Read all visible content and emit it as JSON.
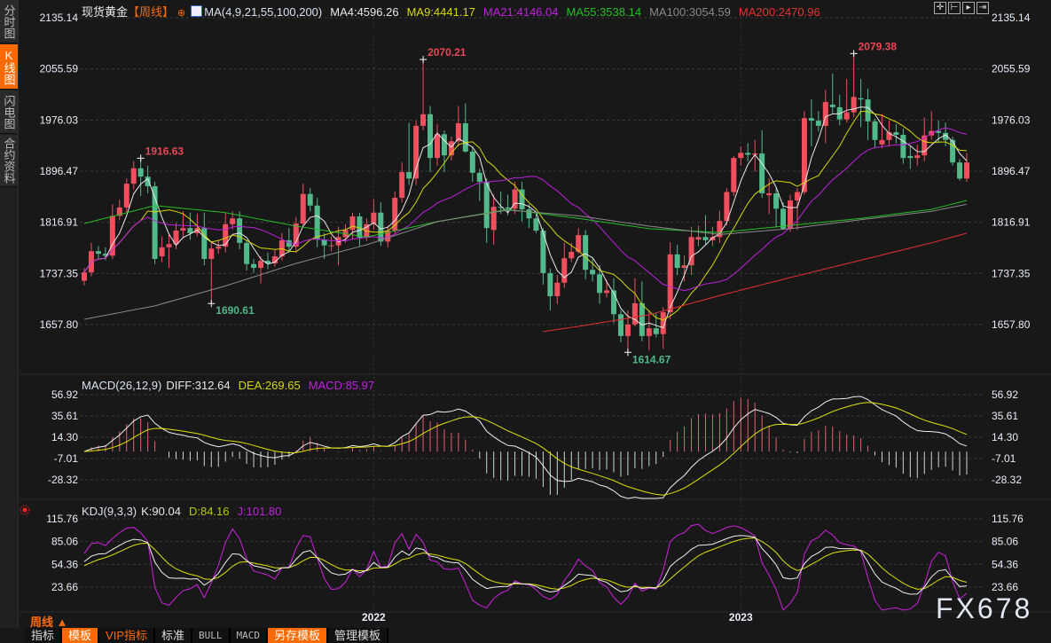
{
  "sidebar": {
    "tabs": [
      {
        "label": "分时图",
        "active": false
      },
      {
        "label": "K线图",
        "active": true
      },
      {
        "label": "闪电图",
        "active": false
      },
      {
        "label": "合约资料",
        "active": false
      }
    ]
  },
  "header": {
    "instrument": "现货黄金",
    "period": "【周线】",
    "ma_label": "MA(4,9,21,55,100,200)",
    "ma_values": [
      {
        "text": "MA4:4596.26",
        "color": "#e8e8e8"
      },
      {
        "text": "MA9:4441.17",
        "color": "#d8d800"
      },
      {
        "text": "MA21:4146.04",
        "color": "#c020e0"
      },
      {
        "text": "MA55:3538.14",
        "color": "#22c022"
      },
      {
        "text": "MA100:3054.59",
        "color": "#8a8a8a"
      },
      {
        "text": "MA200:2470.96",
        "color": "#e83030"
      }
    ],
    "tool_icons": [
      "crosshair-icon",
      "zoom-start-icon",
      "play-forward-icon",
      "go-end-icon"
    ]
  },
  "macd_legend": {
    "name": "MACD(26,12,9)",
    "diff": "DIFF:312.64",
    "dea": "DEA:269.65",
    "macd": "MACD:85.97"
  },
  "kdj_legend": {
    "name": "KDJ(9,3,3)",
    "k": "K:90.04",
    "d": "D:84.16",
    "j": "J:101.80"
  },
  "footer": {
    "period_label": "周线 ▲",
    "toolbar": [
      {
        "label": "指标",
        "style": "plain"
      },
      {
        "label": "模板",
        "style": "orange"
      },
      {
        "label": "VIP指标",
        "style": "vip"
      },
      {
        "label": "标准",
        "style": "plain"
      },
      {
        "label": "BULL",
        "style": "mono"
      },
      {
        "label": "MACD",
        "style": "mono"
      },
      {
        "label": "另存模板",
        "style": "orange"
      },
      {
        "label": "管理模板",
        "style": "plain"
      }
    ],
    "watermark": "FX678"
  },
  "colors": {
    "up": "#f0505e",
    "down": "#52b98b",
    "accent": "#ff6a00",
    "background": "#181818"
  },
  "chart_data": [
    {
      "type": "candlestick",
      "period": "weekly",
      "y_ticks": [
        "2135.14",
        "2055.59",
        "1976.03",
        "1896.47",
        "1816.91",
        "1737.35",
        "1657.80"
      ],
      "ylim": [
        1657.8,
        2135.14
      ],
      "x_ticks": [
        {
          "label": "2022",
          "week_index": 41
        },
        {
          "label": "2023",
          "week_index": 93
        }
      ],
      "grid": true,
      "annotations": [
        {
          "text": "1916.63",
          "index": 8,
          "value": 1916.63,
          "kind": "high"
        },
        {
          "text": "1690.61",
          "index": 18,
          "value": 1690.61,
          "kind": "low"
        },
        {
          "text": "2070.21",
          "index": 48,
          "value": 2070.21,
          "kind": "high"
        },
        {
          "text": "1614.67",
          "index": 77,
          "value": 1614.67,
          "kind": "low"
        },
        {
          "text": "2079.38",
          "index": 109,
          "value": 2079.38,
          "kind": "high"
        }
      ],
      "ohlc": [
        [
          1726,
          1746,
          1719,
          1739
        ],
        [
          1739,
          1785,
          1733,
          1772
        ],
        [
          1772,
          1780,
          1760,
          1768
        ],
        [
          1768,
          1778,
          1758,
          1765
        ],
        [
          1765,
          1845,
          1760,
          1827
        ],
        [
          1827,
          1852,
          1820,
          1840
        ],
        [
          1840,
          1885,
          1832,
          1877
        ],
        [
          1877,
          1912,
          1868,
          1901
        ],
        [
          1901,
          1916.63,
          1858,
          1888
        ],
        [
          1888,
          1905,
          1862,
          1873
        ],
        [
          1873,
          1880,
          1752,
          1760
        ],
        [
          1764,
          1795,
          1755,
          1778
        ],
        [
          1778,
          1800,
          1746,
          1783
        ],
        [
          1783,
          1816,
          1775,
          1804
        ],
        [
          1804,
          1834,
          1792,
          1808
        ],
        [
          1808,
          1832,
          1790,
          1800
        ],
        [
          1800,
          1830,
          1795,
          1808
        ],
        [
          1808,
          1832,
          1750,
          1760
        ],
        [
          1760,
          1785,
          1690.61,
          1776
        ],
        [
          1776,
          1790,
          1768,
          1779
        ],
        [
          1779,
          1832,
          1770,
          1814
        ],
        [
          1814,
          1834,
          1806,
          1823
        ],
        [
          1823,
          1834,
          1775,
          1785
        ],
        [
          1785,
          1790,
          1742,
          1752
        ],
        [
          1752,
          1760,
          1738,
          1746
        ],
        [
          1746,
          1764,
          1722,
          1757
        ],
        [
          1757,
          1770,
          1744,
          1753
        ],
        [
          1753,
          1775,
          1748,
          1764
        ],
        [
          1764,
          1800,
          1758,
          1789
        ],
        [
          1789,
          1808,
          1770,
          1779
        ],
        [
          1779,
          1825,
          1770,
          1815
        ],
        [
          1815,
          1877,
          1810,
          1861
        ],
        [
          1861,
          1870,
          1834,
          1843
        ],
        [
          1843,
          1855,
          1778,
          1790
        ],
        [
          1790,
          1800,
          1760,
          1781
        ],
        [
          1781,
          1795,
          1772,
          1781
        ],
        [
          1781,
          1810,
          1750,
          1794
        ],
        [
          1794,
          1814,
          1785,
          1805
        ],
        [
          1805,
          1832,
          1790,
          1826
        ],
        [
          1826,
          1832,
          1780,
          1793
        ],
        [
          1793,
          1823,
          1788,
          1814
        ],
        [
          1814,
          1853,
          1805,
          1832
        ],
        [
          1832,
          1848,
          1780,
          1787
        ],
        [
          1787,
          1812,
          1778,
          1804
        ],
        [
          1804,
          1865,
          1798,
          1855
        ],
        [
          1855,
          1910,
          1848,
          1895
        ],
        [
          1895,
          1972,
          1875,
          1885
        ],
        [
          1885,
          1975,
          1875,
          1967
        ],
        [
          1967,
          2070.21,
          1960,
          1985
        ],
        [
          1985,
          1998,
          1895,
          1917
        ],
        [
          1917,
          1970,
          1905,
          1954
        ],
        [
          1954,
          1960,
          1895,
          1921
        ],
        [
          1921,
          1950,
          1913,
          1943
        ],
        [
          1943,
          1998,
          1935,
          1971
        ],
        [
          1971,
          2002,
          1925,
          1927
        ],
        [
          1927,
          1935,
          1880,
          1894
        ],
        [
          1894,
          1900,
          1850,
          1880
        ],
        [
          1880,
          1885,
          1785,
          1808
        ],
        [
          1805,
          1860,
          1782,
          1841
        ],
        [
          1841,
          1865,
          1830,
          1840
        ],
        [
          1840,
          1860,
          1828,
          1838
        ],
        [
          1838,
          1880,
          1830,
          1868
        ],
        [
          1868,
          1880,
          1818,
          1837
        ],
        [
          1837,
          1845,
          1808,
          1823
        ],
        [
          1823,
          1830,
          1800,
          1804
        ],
        [
          1804,
          1808,
          1720,
          1738
        ],
        [
          1738,
          1745,
          1680,
          1702
        ],
        [
          1702,
          1735,
          1690,
          1723
        ],
        [
          1723,
          1785,
          1715,
          1761
        ],
        [
          1761,
          1785,
          1755,
          1771
        ],
        [
          1771,
          1808,
          1768,
          1797
        ],
        [
          1797,
          1805,
          1728,
          1743
        ],
        [
          1743,
          1760,
          1725,
          1736
        ],
        [
          1736,
          1750,
          1690,
          1707
        ],
        [
          1707,
          1728,
          1700,
          1711
        ],
        [
          1711,
          1730,
          1660,
          1674
        ],
        [
          1674,
          1680,
          1630,
          1640
        ],
        [
          1640,
          1680,
          1614.67,
          1658
        ],
        [
          1658,
          1730,
          1655,
          1691
        ],
        [
          1691,
          1725,
          1632,
          1640
        ],
        [
          1640,
          1680,
          1618,
          1652
        ],
        [
          1652,
          1676,
          1638,
          1643
        ],
        [
          1643,
          1685,
          1620,
          1677
        ],
        [
          1677,
          1786,
          1666,
          1767
        ],
        [
          1767,
          1782,
          1735,
          1746
        ],
        [
          1746,
          1765,
          1725,
          1750
        ],
        [
          1750,
          1810,
          1735,
          1794
        ],
        [
          1790,
          1812,
          1780,
          1794
        ],
        [
          1794,
          1828,
          1782,
          1789
        ],
        [
          1789,
          1810,
          1780,
          1794
        ],
        [
          1794,
          1835,
          1785,
          1819
        ],
        [
          1819,
          1870,
          1812,
          1864
        ],
        [
          1864,
          1920,
          1858,
          1917
        ],
        [
          1917,
          1935,
          1905,
          1925
        ],
        [
          1925,
          1940,
          1912,
          1922
        ],
        [
          1922,
          1945,
          1896,
          1924
        ],
        [
          1924,
          1960,
          1855,
          1862
        ],
        [
          1859,
          1885,
          1830,
          1862
        ],
        [
          1862,
          1870,
          1810,
          1838
        ],
        [
          1838,
          1848,
          1805,
          1807
        ],
        [
          1807,
          1860,
          1802,
          1851
        ],
        [
          1851,
          1870,
          1805,
          1864
        ],
        [
          1864,
          1990,
          1860,
          1979
        ],
        [
          1979,
          2008,
          1935,
          1975
        ],
        [
          1975,
          1990,
          1958,
          1967
        ],
        [
          1967,
          2023,
          1940,
          2004
        ],
        [
          2000,
          2048,
          1985,
          1996
        ],
        [
          1996,
          2015,
          1968,
          1977
        ],
        [
          1977,
          2040,
          1972,
          1988
        ],
        [
          1988,
          2079.38,
          1980,
          2012
        ],
        [
          2010,
          2040,
          1965,
          2008
        ],
        [
          2008,
          2025,
          1945,
          1974
        ],
        [
          1974,
          1978,
          1932,
          1945
        ],
        [
          1938,
          1985,
          1932,
          1945
        ],
        [
          1945,
          1975,
          1935,
          1957
        ],
        [
          1957,
          1970,
          1940,
          1953
        ],
        [
          1953,
          1963,
          1908,
          1917
        ],
        [
          1920,
          1935,
          1900,
          1917
        ],
        [
          1917,
          1938,
          1905,
          1921
        ],
        [
          1921,
          1980,
          1912,
          1952
        ],
        [
          1952,
          1990,
          1945,
          1959
        ],
        [
          1959,
          1975,
          1940,
          1956
        ],
        [
          1956,
          1972,
          1935,
          1945
        ],
        [
          1945,
          1950,
          1905,
          1910
        ],
        [
          1910,
          1915,
          1882,
          1885
        ],
        [
          1885,
          1925,
          1880,
          1910
        ]
      ],
      "moving_averages": [
        {
          "name": "MA4",
          "period": 4,
          "color": "#e8e8e8"
        },
        {
          "name": "MA9",
          "period": 9,
          "color": "#d8d800"
        },
        {
          "name": "MA21",
          "period": 21,
          "color": "#c020e0"
        },
        {
          "name": "MA55",
          "color": "#22c022",
          "points": [
            [
              0,
              1815
            ],
            [
              10,
              1843
            ],
            [
              20,
              1832
            ],
            [
              30,
              1811
            ],
            [
              40,
              1794
            ],
            [
              50,
              1818
            ],
            [
              60,
              1837
            ],
            [
              70,
              1823
            ],
            [
              80,
              1807
            ],
            [
              90,
              1801
            ],
            [
              100,
              1812
            ],
            [
              110,
              1823
            ],
            [
              120,
              1837
            ],
            [
              125,
              1851
            ]
          ]
        },
        {
          "name": "MA100",
          "color": "#8a8a8a",
          "points": [
            [
              0,
              1666
            ],
            [
              10,
              1687
            ],
            [
              20,
              1718
            ],
            [
              30,
              1753
            ],
            [
              40,
              1782
            ],
            [
              50,
              1818
            ],
            [
              60,
              1836
            ],
            [
              70,
              1827
            ],
            [
              80,
              1811
            ],
            [
              90,
              1798
            ],
            [
              100,
              1807
            ],
            [
              110,
              1821
            ],
            [
              120,
              1834
            ],
            [
              125,
              1845
            ]
          ]
        },
        {
          "name": "MA200",
          "color": "#e83030",
          "points": [
            [
              65,
              1647
            ],
            [
              70,
              1655
            ],
            [
              80,
              1673
            ],
            [
              90,
              1703
            ],
            [
              100,
              1731
            ],
            [
              110,
              1758
            ],
            [
              120,
              1785
            ],
            [
              125,
              1800
            ]
          ]
        }
      ]
    },
    {
      "type": "macd",
      "params": [
        26,
        12,
        9
      ],
      "y_ticks": [
        "56.92",
        "35.61",
        "14.30",
        "-7.01",
        "-28.32"
      ],
      "ylim": [
        -28.32,
        56.92
      ],
      "series": [
        {
          "name": "DIFF",
          "color": "#f0f0f0"
        },
        {
          "name": "DEA",
          "color": "#e0e000"
        },
        {
          "name": "MACD",
          "color": "#c020e0"
        }
      ]
    },
    {
      "type": "kdj",
      "params": [
        9,
        3,
        3
      ],
      "y_ticks": [
        "115.76",
        "85.06",
        "54.36",
        "23.66"
      ],
      "ylim": [
        23.66,
        115.76
      ],
      "series": [
        {
          "name": "K",
          "color": "#f0f0f0"
        },
        {
          "name": "D",
          "color": "#e0e000"
        },
        {
          "name": "J",
          "color": "#d020e0"
        }
      ]
    }
  ]
}
